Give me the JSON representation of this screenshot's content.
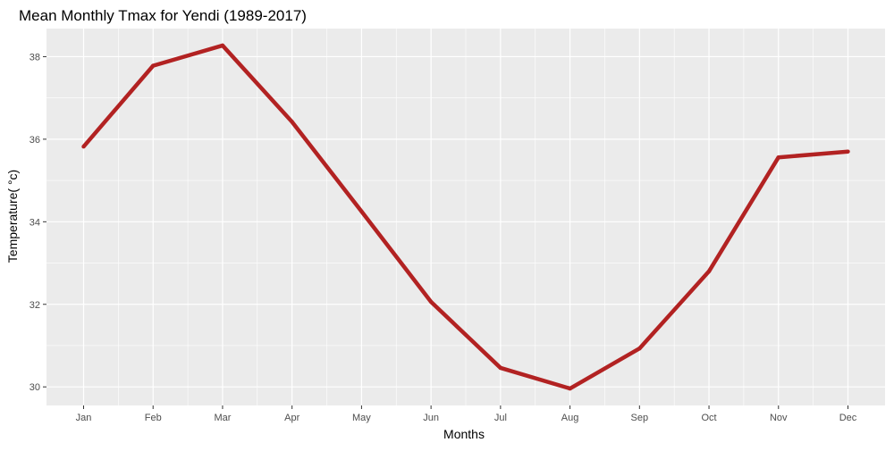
{
  "chart_data": {
    "type": "line",
    "title": "Mean Monthly Tmax for Yendi (1989-2017)",
    "xlabel": "Months",
    "ylabel": "Temperature( °c)",
    "categories": [
      "Jan",
      "Feb",
      "Mar",
      "Apr",
      "May",
      "Jun",
      "Jul",
      "Aug",
      "Sep",
      "Oct",
      "Nov",
      "Dec"
    ],
    "series": [
      {
        "values": [
          35.82,
          37.78,
          38.27,
          36.42,
          34.25,
          32.06,
          30.46,
          29.96,
          30.93,
          32.8,
          35.56,
          35.7
        ]
      }
    ],
    "ylim": [
      29.55,
      38.68
    ],
    "yticks": [
      30,
      32,
      34,
      36,
      38
    ],
    "grid": true,
    "legend": "none",
    "colors": {
      "panel_background": "#EBEBEB",
      "grid": "#FFFFFF",
      "line": "#B22222"
    }
  }
}
